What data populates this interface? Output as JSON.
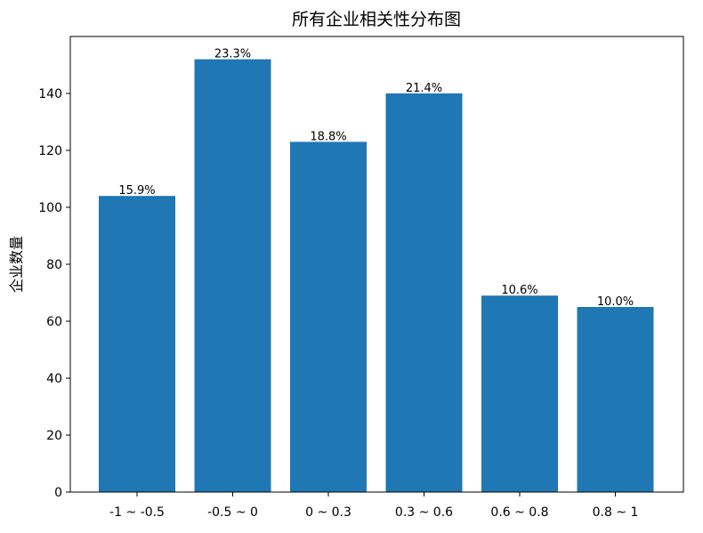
{
  "chart_data": {
    "type": "bar",
    "title": "所有企业相关性分布图",
    "xlabel": "",
    "ylabel": "企业数量",
    "categories": [
      "-1 ~ -0.5",
      "-0.5 ~ 0",
      "0 ~ 0.3",
      "0.3 ~ 0.6",
      "0.6 ~ 0.8",
      "0.8 ~ 1"
    ],
    "values": [
      104,
      152,
      123,
      140,
      69,
      65
    ],
    "data_labels": [
      "15.9%",
      "23.3%",
      "18.8%",
      "21.4%",
      "10.6%",
      "10.0%"
    ],
    "ylim": [
      0,
      160
    ],
    "yticks": [
      0,
      20,
      40,
      60,
      80,
      100,
      120,
      140
    ],
    "grid": false,
    "bar_color": "#1f77b4"
  }
}
